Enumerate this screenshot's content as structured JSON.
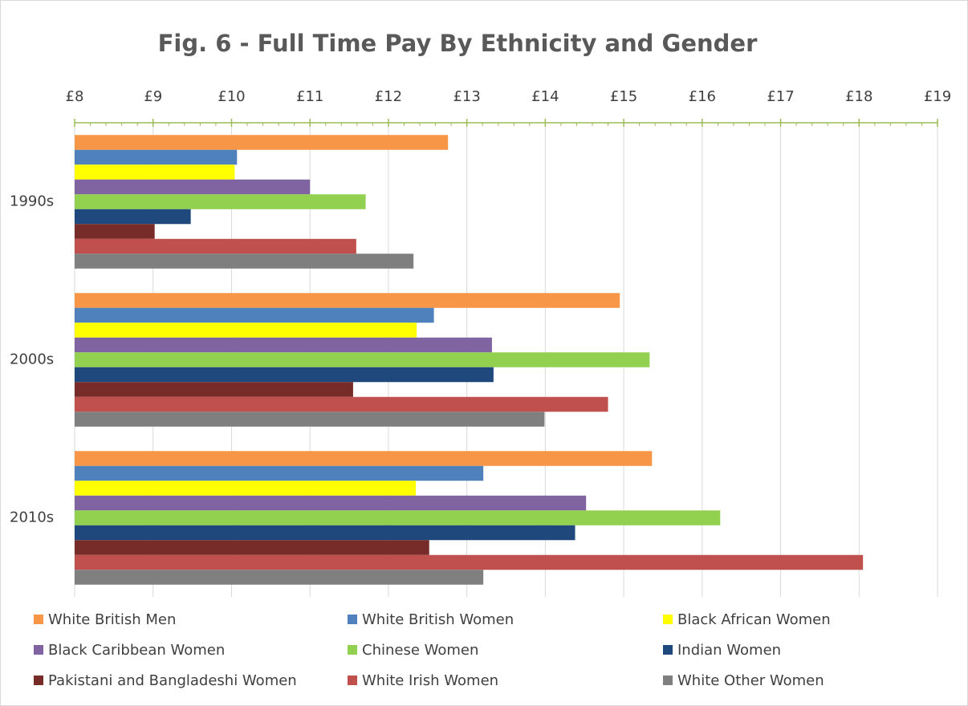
{
  "chart_data": {
    "type": "bar",
    "orientation": "horizontal",
    "title": "Fig. 6 - Full Time Pay By Ethnicity and Gender",
    "categories": [
      "1990s",
      "2000s",
      "2010s"
    ],
    "xlim": [
      8,
      19
    ],
    "xticks": [
      {
        "value": 8,
        "label": "£8"
      },
      {
        "value": 9,
        "label": "£9"
      },
      {
        "value": 10,
        "label": "£10"
      },
      {
        "value": 11,
        "label": "£11"
      },
      {
        "value": 12,
        "label": "£12"
      },
      {
        "value": 13,
        "label": "£13"
      },
      {
        "value": 14,
        "label": "£14"
      },
      {
        "value": 15,
        "label": "£15"
      },
      {
        "value": 16,
        "label": "£16"
      },
      {
        "value": 17,
        "label": "£17"
      },
      {
        "value": 18,
        "label": "£18"
      },
      {
        "value": 19,
        "label": "£19"
      }
    ],
    "grid": true,
    "legend": "bottom",
    "series": [
      {
        "name": "White British Men",
        "color": "#f79646",
        "values": [
          12.76,
          14.95,
          15.36
        ]
      },
      {
        "name": "White British Women",
        "color": "#4f81bd",
        "values": [
          10.07,
          12.58,
          13.21
        ]
      },
      {
        "name": "Black African Women",
        "color": "#ffff00",
        "values": [
          10.04,
          12.36,
          12.35
        ]
      },
      {
        "name": "Black Caribbean Women",
        "color": "#8064a2",
        "values": [
          11.0,
          13.32,
          14.52
        ]
      },
      {
        "name": "Chinese Women",
        "color": "#92d050",
        "values": [
          11.71,
          15.33,
          16.23
        ]
      },
      {
        "name": "Indian Women",
        "color": "#1f497d",
        "values": [
          9.48,
          13.34,
          14.38
        ]
      },
      {
        "name": "Pakistani and Bangladeshi Women",
        "color": "#772c2a",
        "values": [
          9.02,
          11.55,
          12.52
        ]
      },
      {
        "name": "White Irish Women",
        "color": "#c0504d",
        "values": [
          11.59,
          14.8,
          18.05
        ]
      },
      {
        "name": "White Other Women",
        "color": "#7f7f7f",
        "values": [
          12.32,
          13.99,
          13.21
        ]
      }
    ]
  }
}
